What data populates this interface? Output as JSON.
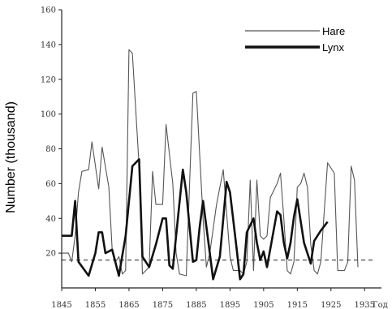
{
  "chart_data": {
    "type": "line",
    "ylabel": "Number (thousand)",
    "xlabel_unit": "Год",
    "xlim": [
      1845,
      1940
    ],
    "ylim": [
      0,
      160
    ],
    "x_ticks": [
      1845,
      1855,
      1865,
      1875,
      1885,
      1895,
      1905,
      1915,
      1925,
      1935
    ],
    "y_ticks": [
      20,
      40,
      60,
      80,
      100,
      120,
      140,
      160
    ],
    "grid": false,
    "legend_position": "top-right",
    "reference_line": {
      "y": 16,
      "style": "dashed"
    },
    "series": [
      {
        "name": "Hare",
        "style": "thin",
        "color": "#555555",
        "points": [
          [
            1845,
            20
          ],
          [
            1847,
            20
          ],
          [
            1848,
            15
          ],
          [
            1849,
            30
          ],
          [
            1850,
            55
          ],
          [
            1851,
            67
          ],
          [
            1853,
            68
          ],
          [
            1854,
            84
          ],
          [
            1856,
            57
          ],
          [
            1857,
            81
          ],
          [
            1859,
            58
          ],
          [
            1860,
            22
          ],
          [
            1861,
            15
          ],
          [
            1862,
            18
          ],
          [
            1863,
            8
          ],
          [
            1864,
            10
          ],
          [
            1865,
            137
          ],
          [
            1866,
            135
          ],
          [
            1868,
            70
          ],
          [
            1869,
            8
          ],
          [
            1871,
            12
          ],
          [
            1872,
            67
          ],
          [
            1873,
            48
          ],
          [
            1875,
            48
          ],
          [
            1876,
            94
          ],
          [
            1878,
            60
          ],
          [
            1879,
            20
          ],
          [
            1880,
            8
          ],
          [
            1882,
            7
          ],
          [
            1883,
            60
          ],
          [
            1884,
            112
          ],
          [
            1885,
            113
          ],
          [
            1887,
            40
          ],
          [
            1888,
            12
          ],
          [
            1889,
            20
          ],
          [
            1891,
            48
          ],
          [
            1893,
            68
          ],
          [
            1895,
            18
          ],
          [
            1896,
            10
          ],
          [
            1898,
            10
          ],
          [
            1899,
            8
          ],
          [
            1900,
            15
          ],
          [
            1901,
            62
          ],
          [
            1902,
            10
          ],
          [
            1903,
            62
          ],
          [
            1904,
            30
          ],
          [
            1905,
            28
          ],
          [
            1906,
            30
          ],
          [
            1907,
            52
          ],
          [
            1909,
            60
          ],
          [
            1910,
            66
          ],
          [
            1911,
            40
          ],
          [
            1912,
            10
          ],
          [
            1913,
            8
          ],
          [
            1914,
            15
          ],
          [
            1915,
            58
          ],
          [
            1916,
            60
          ],
          [
            1917,
            66
          ],
          [
            1918,
            58
          ],
          [
            1919,
            25
          ],
          [
            1920,
            10
          ],
          [
            1921,
            8
          ],
          [
            1922,
            15
          ],
          [
            1924,
            72
          ],
          [
            1926,
            66
          ],
          [
            1927,
            10
          ],
          [
            1929,
            10
          ],
          [
            1930,
            15
          ],
          [
            1931,
            70
          ],
          [
            1932,
            62
          ],
          [
            1933,
            12
          ]
        ]
      },
      {
        "name": "Lynx",
        "style": "thick",
        "color": "#111111",
        "points": [
          [
            1845,
            30
          ],
          [
            1847,
            30
          ],
          [
            1848,
            30
          ],
          [
            1849,
            50
          ],
          [
            1850,
            15
          ],
          [
            1853,
            7
          ],
          [
            1855,
            20
          ],
          [
            1856,
            32
          ],
          [
            1857,
            32
          ],
          [
            1858,
            20
          ],
          [
            1860,
            22
          ],
          [
            1862,
            7
          ],
          [
            1864,
            30
          ],
          [
            1866,
            70
          ],
          [
            1867,
            72
          ],
          [
            1868,
            74
          ],
          [
            1869,
            18
          ],
          [
            1871,
            12
          ],
          [
            1873,
            25
          ],
          [
            1875,
            40
          ],
          [
            1876,
            40
          ],
          [
            1877,
            13
          ],
          [
            1878,
            11
          ],
          [
            1879,
            30
          ],
          [
            1881,
            68
          ],
          [
            1882,
            55
          ],
          [
            1884,
            15
          ],
          [
            1885,
            16
          ],
          [
            1886,
            35
          ],
          [
            1887,
            50
          ],
          [
            1889,
            20
          ],
          [
            1890,
            5
          ],
          [
            1892,
            18
          ],
          [
            1894,
            61
          ],
          [
            1895,
            55
          ],
          [
            1897,
            22
          ],
          [
            1898,
            5
          ],
          [
            1899,
            8
          ],
          [
            1900,
            32
          ],
          [
            1902,
            40
          ],
          [
            1903,
            26
          ],
          [
            1904,
            16
          ],
          [
            1905,
            21
          ],
          [
            1906,
            12
          ],
          [
            1909,
            44
          ],
          [
            1910,
            42
          ],
          [
            1911,
            26
          ],
          [
            1912,
            17
          ],
          [
            1913,
            26
          ],
          [
            1914,
            41
          ],
          [
            1915,
            51
          ],
          [
            1917,
            26
          ],
          [
            1919,
            14
          ],
          [
            1920,
            27
          ],
          [
            1922,
            33
          ],
          [
            1924,
            38
          ]
        ]
      }
    ]
  }
}
